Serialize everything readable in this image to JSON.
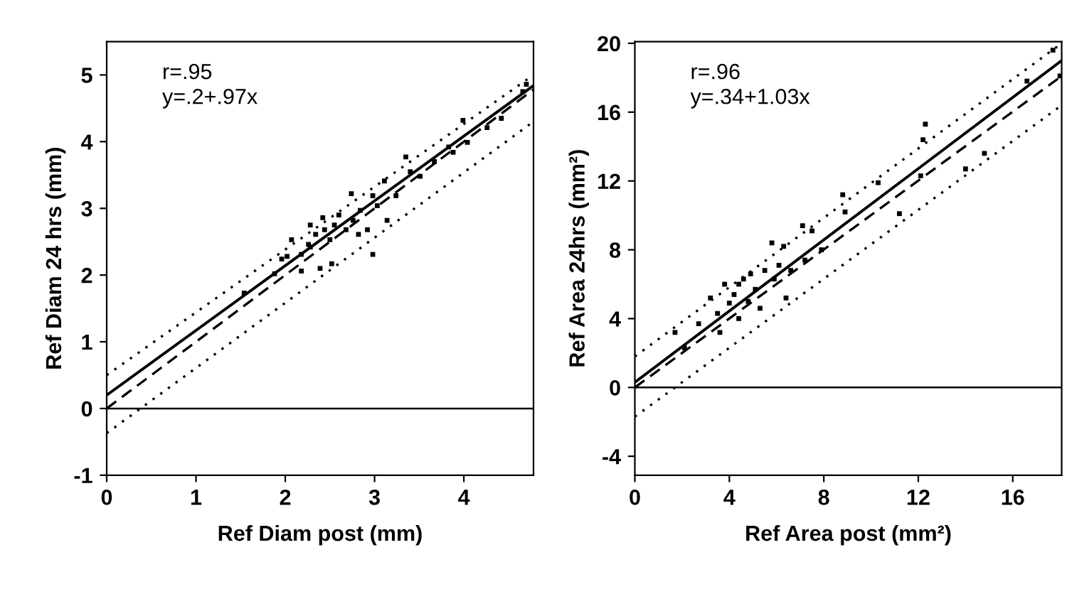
{
  "chart_data": [
    {
      "type": "scatter",
      "xlabel": "Ref Diam post (mm)",
      "ylabel": "Ref Diam 24 hrs (mm)",
      "annotations": [
        "r=.95",
        "y=.2+.97x"
      ],
      "xlim": [
        0,
        4.78
      ],
      "ylim": [
        -1,
        5.5
      ],
      "xticks": [
        0,
        1,
        2,
        3,
        4
      ],
      "yticks": [
        -1,
        0,
        1,
        2,
        3,
        4,
        5
      ],
      "grid": false,
      "legend": false,
      "ref_lines": [
        {
          "axis": "y",
          "value": 0,
          "color": "#000000",
          "line_style": "solid"
        }
      ],
      "series": [
        {
          "color": "#000000",
          "marker": "square",
          "x": [
            1.54,
            1.88,
            1.96,
            2.07,
            2.18,
            2.26,
            2.28,
            2.34,
            2.39,
            2.42,
            2.44,
            2.5,
            2.55,
            2.6,
            2.68,
            2.74,
            2.76,
            2.82,
            2.84,
            2.92,
            2.98,
            3.03,
            3.11,
            3.14,
            3.24,
            3.35,
            3.4,
            3.51,
            3.67,
            3.83,
            3.88,
            3.99,
            4.04,
            4.26,
            4.42,
            4.66,
            4.7,
            2.98,
            2.18,
            2.52,
            2.28,
            2.02
          ],
          "values": [
            1.73,
            2.02,
            2.24,
            2.53,
            2.31,
            2.46,
            2.75,
            2.61,
            2.1,
            2.86,
            2.68,
            2.53,
            2.75,
            2.9,
            2.68,
            3.22,
            2.82,
            2.61,
            2.97,
            2.68,
            3.19,
            3.04,
            3.41,
            2.82,
            3.19,
            3.77,
            3.55,
            3.48,
            3.7,
            3.92,
            3.84,
            4.32,
            3.99,
            4.21,
            4.35,
            4.75,
            4.86,
            2.31,
            2.06,
            2.17,
            2.42,
            2.28
          ]
        },
        {
          "type": "line",
          "color": "#000000",
          "line_style": "solid",
          "x": [
            0,
            4.78
          ],
          "values": [
            0.2,
            4.84
          ]
        },
        {
          "type": "line",
          "color": "#000000",
          "line_style": "dashed",
          "x": [
            0,
            4.78
          ],
          "values": [
            0,
            4.78
          ]
        },
        {
          "type": "line",
          "color": "#000000",
          "line_style": "dotted",
          "x": [
            0,
            4.78
          ],
          "values": [
            0.5,
            5.0
          ]
        },
        {
          "type": "line",
          "color": "#000000",
          "line_style": "dotted",
          "x": [
            0,
            4.78
          ],
          "values": [
            -0.37,
            4.3
          ]
        }
      ]
    },
    {
      "type": "scatter",
      "xlabel": "Ref Area post (mm²)",
      "ylabel": "Ref Area 24hrs (mm²)",
      "annotations": [
        "r=.96",
        "y=.34+1.03x"
      ],
      "xlim": [
        0,
        18.07
      ],
      "ylim": [
        -5.1,
        20.1
      ],
      "xticks": [
        0,
        4,
        8,
        12,
        16
      ],
      "yticks": [
        -4,
        0,
        4,
        8,
        12,
        16,
        20
      ],
      "grid": false,
      "legend": false,
      "ref_lines": [
        {
          "axis": "y",
          "value": 0,
          "color": "#000000",
          "line_style": "solid"
        }
      ],
      "series": [
        {
          "color": "#000000",
          "marker": "square",
          "x": [
            3.2,
            3.5,
            3.8,
            4.0,
            4.2,
            4.4,
            4.6,
            4.8,
            5.1,
            5.3,
            5.5,
            5.8,
            5.9,
            6.1,
            6.4,
            6.6,
            7.1,
            7.2,
            7.5,
            7.9,
            8.8,
            8.9,
            10.3,
            11.2,
            12.1,
            12.3,
            12.2,
            14.0,
            14.8,
            16.6,
            17.7,
            18.0,
            1.7,
            2.7,
            2.1,
            3.6,
            4.4,
            4.9,
            6.3
          ],
          "values": [
            5.2,
            4.3,
            6.0,
            4.9,
            5.4,
            4.0,
            6.3,
            5.0,
            5.7,
            4.6,
            6.8,
            8.4,
            6.3,
            7.1,
            5.2,
            6.8,
            9.4,
            7.4,
            9.1,
            8.0,
            11.2,
            10.2,
            11.9,
            10.1,
            12.3,
            15.3,
            14.4,
            12.7,
            13.6,
            17.8,
            19.6,
            18.1,
            3.2,
            3.7,
            2.3,
            3.2,
            6.0,
            6.6,
            8.2
          ]
        },
        {
          "type": "line",
          "color": "#000000",
          "line_style": "solid",
          "x": [
            0,
            18.07
          ],
          "values": [
            0.3,
            19.0
          ]
        },
        {
          "type": "line",
          "color": "#000000",
          "line_style": "dashed",
          "x": [
            0,
            18.07
          ],
          "values": [
            0,
            18.1
          ]
        },
        {
          "type": "line",
          "color": "#000000",
          "line_style": "dotted",
          "x": [
            0,
            18.07
          ],
          "values": [
            1.8,
            20.0
          ]
        },
        {
          "type": "line",
          "color": "#000000",
          "line_style": "dotted",
          "x": [
            0,
            18.07
          ],
          "values": [
            -1.7,
            16.4
          ]
        }
      ]
    }
  ]
}
